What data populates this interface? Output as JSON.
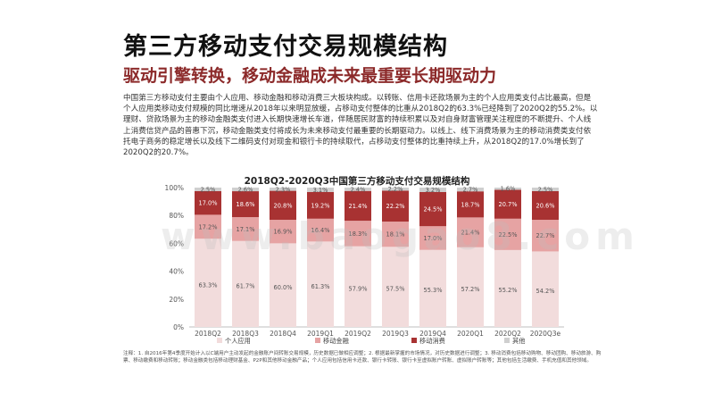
{
  "title": "第三方移动支付交易规模结构",
  "subtitle": "驱动引擎转换，移动金融成未来最重要长期驱动力",
  "body": "中国第三方移动支付主要由个人应用、移动金融和移动消费三大板块构成。以转账、信用卡还款场景为主的个人应用类支付占比最高，但是个人应用类移动支付规模的同比增速从2018年以来明显放缓，占移动支付整体的比重从2018Q2的63.3%已经降到了2020Q2的55.2%。以理财、贷款场景为主的移动金融类支付进入长期快速增长车道，伴随居民财富的持续积累以及对自身财富管理关注程度的不断提升、个人线上消费信贷产品的普惠下沉，移动金融类支付将成长为未来移动支付最重要的长期驱动力。以线上、线下消费场景为主的移动消费类支付依托电子商务的稳定增长以及线下二维码支付对现金和银行卡的持续取代，占移动支付整体的比重持续上升，从2018Q2的17.0%增长到了2020Q2的20.7%。",
  "watermark": "www.baogao8.com",
  "note": "注释：1. 自2016年第4季度开始计入以C端用户主动发起的金融账户间转账交易规模，历史数据已做相应调整；2. 根据最新掌握的市场情况，对历史数据进行调整；3. 移动消费包括移动购物、移动团购、移动旅游、购票、移动缴费和移动转账；移动金融类包括移动理财基金、P2P和其他移动金融产品；个人应用包括信用卡还款、银行卡转账、银行卡至虚拟账户转账、虚拟账户转账等；其他包括生活缴费、手机充值和其他领域。",
  "colors": {
    "personal": "#f2dcdc",
    "finance": "#e6a3a3",
    "consumption": "#a83232",
    "other": "#cfcfcf"
  },
  "chart_data": {
    "type": "bar",
    "stacked": true,
    "percent": true,
    "title": "2018Q2-2020Q3中国第三方移动支付交易规模结构",
    "categories": [
      "2018Q2",
      "2018Q3",
      "2018Q4",
      "2019Q1",
      "2019Q2",
      "2019Q3",
      "2019Q4",
      "2020Q1",
      "2020Q2",
      "2020Q3e"
    ],
    "yticks": [
      "0%",
      "20%",
      "40%",
      "60%",
      "80%",
      "100%"
    ],
    "ylim": [
      0,
      100
    ],
    "legend_position": "bottom",
    "series": [
      {
        "name": "个人应用",
        "values": [
          63.3,
          61.7,
          60.0,
          61.3,
          57.9,
          57.5,
          55.3,
          57.2,
          55.2,
          54.2
        ],
        "labels": [
          "63.3%",
          "61.7%",
          "60.0%",
          "61.3%",
          "57.9%",
          "57.5%",
          "55.3%",
          "57.2%",
          "55.2%",
          "54.2%"
        ]
      },
      {
        "name": "移动金融",
        "values": [
          17.2,
          17.1,
          16.9,
          16.4,
          18.3,
          18.1,
          17.0,
          21.4,
          22.5,
          22.7
        ],
        "labels": [
          "17.2%",
          "17.1%",
          "16.9%",
          "16.4%",
          "18.3%",
          "18.1%",
          "17.0%",
          "21.4%",
          "22.5%",
          "22.7%"
        ]
      },
      {
        "name": "移动消费",
        "values": [
          17.0,
          18.6,
          20.8,
          19.2,
          21.4,
          22.2,
          24.5,
          18.7,
          20.7,
          20.6
        ],
        "labels": [
          "17.0%",
          "18.6%",
          "20.8%",
          "19.2%",
          "21.4%",
          "22.2%",
          "24.5%",
          "18.7%",
          "20.7%",
          "20.6%"
        ]
      },
      {
        "name": "其他",
        "values": [
          2.5,
          2.6,
          2.3,
          3.1,
          2.4,
          2.2,
          3.2,
          2.7,
          1.6,
          2.5
        ],
        "labels": [
          "2.5%",
          "2.6%",
          "2.3%",
          "3.1%",
          "2.4%",
          "2.2%",
          "3.2%",
          "2.7%",
          "1.6%",
          "2.5%"
        ]
      }
    ]
  }
}
